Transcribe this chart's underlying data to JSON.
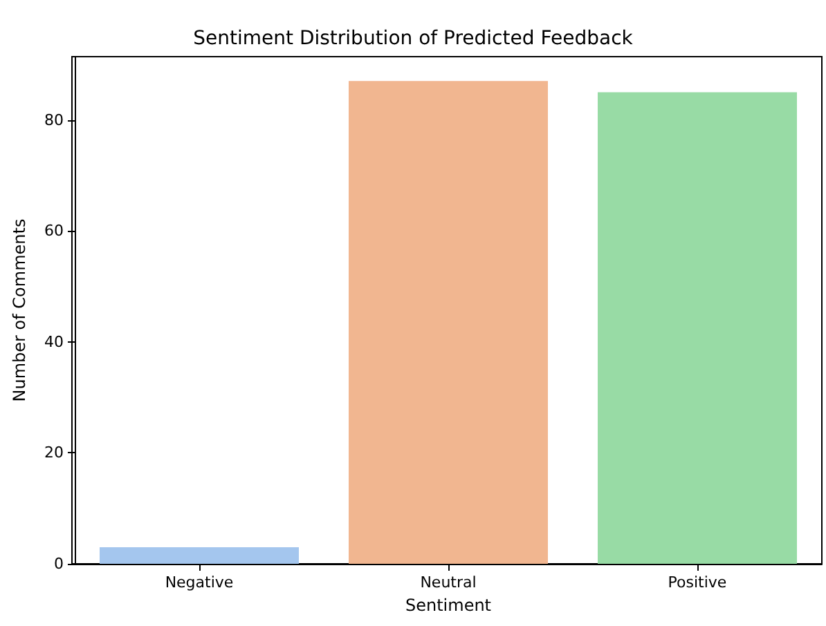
{
  "chart_data": {
    "type": "bar",
    "title": "Sentiment Distribution of Predicted Feedback",
    "xlabel": "Sentiment",
    "ylabel": "Number of Comments",
    "categories": [
      "Negative",
      "Neutral",
      "Positive"
    ],
    "values": [
      3,
      87,
      85
    ],
    "colors": [
      "#a4c6ee",
      "#f1b690",
      "#98dba5"
    ],
    "ylim": [
      0,
      91.4
    ],
    "yticks": [
      0,
      20,
      40,
      60,
      80
    ],
    "grid": false
  }
}
